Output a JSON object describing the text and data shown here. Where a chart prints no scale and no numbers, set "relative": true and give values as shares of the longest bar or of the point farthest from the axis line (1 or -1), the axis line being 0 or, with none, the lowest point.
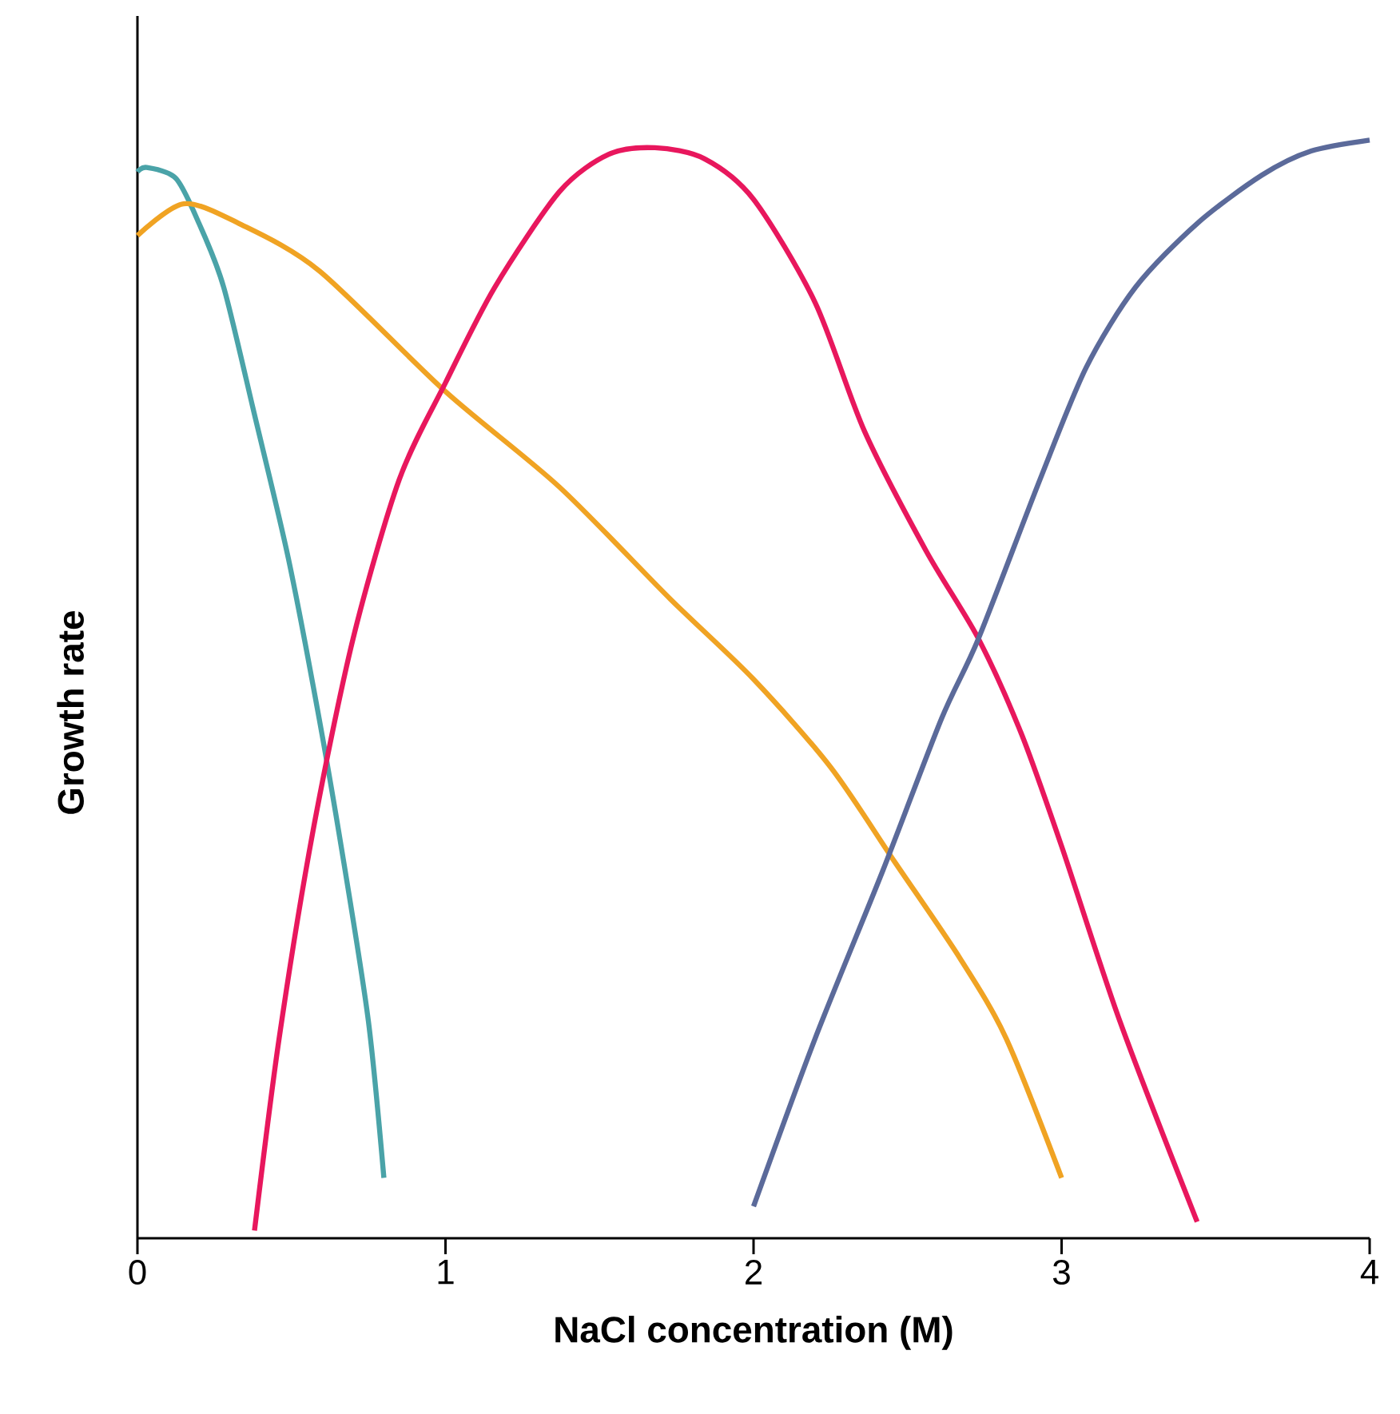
{
  "chart_data": {
    "type": "line",
    "relative": true,
    "xlabel": "NaCl concentration (M)",
    "ylabel": "Growth rate",
    "xlim": [
      0,
      4
    ],
    "xticks": [
      0,
      1,
      2,
      3,
      4
    ],
    "series": [
      {
        "color": "#4aa3a8",
        "x": [
          0,
          0.03,
          0.125,
          0.2,
          0.28,
          0.38,
          0.49,
          0.59,
          0.67,
          0.75,
          0.8
        ],
        "values": [
          0.971,
          0.975,
          0.965,
          0.924,
          0.866,
          0.75,
          0.619,
          0.473,
          0.342,
          0.197,
          0.055
        ]
      },
      {
        "color": "#f0a323",
        "x": [
          0,
          0.15,
          0.33,
          0.59,
          1,
          1.37,
          1.73,
          2,
          2.25,
          2.46,
          2.67,
          2.82,
          3
        ],
        "values": [
          0.913,
          0.942,
          0.924,
          0.881,
          0.771,
          0.684,
          0.582,
          0.509,
          0.429,
          0.342,
          0.255,
          0.182,
          0.055
        ]
      },
      {
        "color": "#e8175d",
        "x": [
          0.38,
          0.46,
          0.57,
          0.7,
          0.85,
          1,
          1.16,
          1.37,
          1.53,
          1.68,
          1.84,
          2,
          2.2,
          2.36,
          2.56,
          2.73,
          2.87,
          3,
          3.19,
          3.44
        ],
        "values": [
          0.007,
          0.182,
          0.371,
          0.546,
          0.691,
          0.779,
          0.866,
          0.953,
          0.987,
          0.993,
          0.983,
          0.946,
          0.852,
          0.735,
          0.626,
          0.546,
          0.459,
          0.357,
          0.197,
          0.015
        ]
      },
      {
        "color": "#5b6a9a",
        "x": [
          2,
          2.2,
          2.42,
          2.61,
          2.73,
          2.93,
          3.08,
          3.24,
          3.44,
          3.65,
          3.81,
          4
        ],
        "values": [
          0.029,
          0.182,
          0.335,
          0.473,
          0.546,
          0.691,
          0.793,
          0.866,
          0.924,
          0.968,
          0.99,
          1
        ]
      }
    ]
  }
}
